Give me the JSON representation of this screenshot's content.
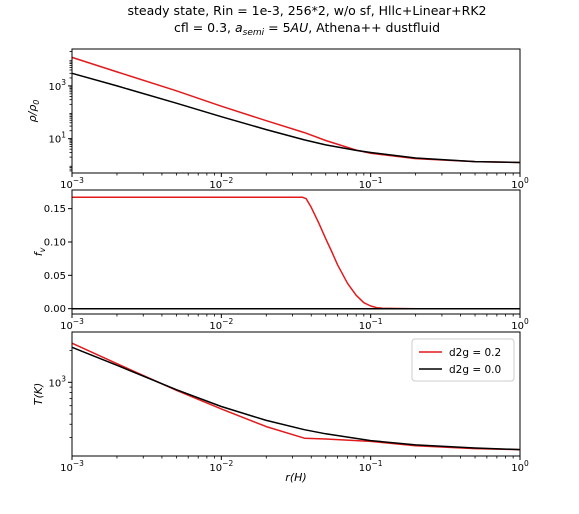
{
  "chart_data": {
    "title_line1": "steady state, Rin = 1e-3, 256*2, w/o sf,    Hllc+Linear+RK2",
    "title_line2_parts": [
      "cfl = 0.3, ",
      "a",
      "semi",
      " = 5",
      "AU",
      ", Athena++ dustfluid"
    ],
    "shared_x": {
      "label": "r(H)",
      "scale": "log",
      "lim": [
        0.001,
        1.0
      ],
      "ticks": [
        0.001,
        0.01,
        0.1,
        1.0
      ],
      "tick_labels": [
        [
          "10",
          "−3"
        ],
        [
          "10",
          "−2"
        ],
        [
          "10",
          "−1"
        ],
        [
          "10",
          "0"
        ]
      ]
    },
    "legend": {
      "placement": "upper right",
      "entries": [
        {
          "label": "d2g = 0.2",
          "color": "#e31a1c"
        },
        {
          "label": "d2g = 0.0",
          "color": "#000000"
        }
      ]
    },
    "charts": [
      {
        "id": "density",
        "type": "line",
        "ylabel_parts": [
          "ρ/ρ",
          "0"
        ],
        "yscale": "log",
        "ylim": [
          0.5,
          25000
        ],
        "yticks": [
          10,
          1000
        ],
        "ytick_labels": [
          [
            "10",
            "1"
          ],
          [
            "10",
            "3"
          ]
        ],
        "series": [
          {
            "name": "d2g = 0.2",
            "color": "#e31a1c",
            "x": [
              0.001,
              0.002,
              0.005,
              0.01,
              0.02,
              0.036,
              0.05,
              0.08,
              0.1,
              0.2,
              0.5,
              1.0
            ],
            "y": [
              12000,
              3400,
              650,
              170,
              48,
              17,
              8.5,
              3.7,
              2.8,
              1.75,
              1.35,
              1.25
            ]
          },
          {
            "name": "d2g = 0.0",
            "color": "#000000",
            "x": [
              0.001,
              0.002,
              0.005,
              0.01,
              0.02,
              0.036,
              0.05,
              0.08,
              0.1,
              0.2,
              0.5,
              1.0
            ],
            "y": [
              3000,
              1000,
              220,
              68,
              22,
              9,
              5.8,
              3.6,
              3.0,
              1.85,
              1.35,
              1.25
            ]
          }
        ]
      },
      {
        "id": "dust-fraction",
        "type": "line",
        "ylabel_parts": [
          "f",
          "v"
        ],
        "yscale": "linear",
        "ylim": [
          -0.008,
          0.178
        ],
        "yticks": [
          0.0,
          0.05,
          0.1,
          0.15
        ],
        "ytick_labels": [
          "0.00",
          "0.05",
          "0.10",
          "0.15"
        ],
        "series": [
          {
            "name": "d2g = 0.2",
            "color": "#e31a1c",
            "x": [
              0.001,
              0.01,
              0.035,
              0.037,
              0.04,
              0.045,
              0.05,
              0.055,
              0.06,
              0.07,
              0.08,
              0.09,
              0.1,
              0.11,
              0.12,
              0.15,
              0.2,
              1.0
            ],
            "y": [
              0.167,
              0.167,
              0.167,
              0.165,
              0.152,
              0.128,
              0.105,
              0.085,
              0.066,
              0.038,
              0.02,
              0.009,
              0.004,
              0.0015,
              0.0007,
              0.0002,
              0.0,
              0.0
            ]
          },
          {
            "name": "d2g = 0.0",
            "color": "#000000",
            "x": [
              0.001,
              1.0
            ],
            "y": [
              0.0,
              0.0
            ]
          }
        ]
      },
      {
        "id": "temperature",
        "type": "line",
        "ylabel": "T(K)",
        "yscale": "log",
        "ylim": [
          200,
          3000
        ],
        "yticks": [
          1000
        ],
        "ytick_labels": [
          [
            "10",
            "3"
          ]
        ],
        "series": [
          {
            "name": "d2g = 0.2",
            "color": "#e31a1c",
            "x": [
              0.001,
              0.002,
              0.005,
              0.01,
              0.02,
              0.036,
              0.05,
              0.1,
              0.2,
              0.5,
              1.0
            ],
            "y": [
              2350,
              1500,
              840,
              560,
              380,
              295,
              290,
              275,
              250,
              235,
              230
            ]
          },
          {
            "name": "d2g = 0.0",
            "color": "#000000",
            "x": [
              0.001,
              0.002,
              0.005,
              0.01,
              0.02,
              0.036,
              0.05,
              0.1,
              0.2,
              0.5,
              1.0
            ],
            "y": [
              2150,
              1450,
              850,
              590,
              435,
              355,
              325,
              280,
              255,
              238,
              230
            ]
          }
        ]
      }
    ]
  }
}
